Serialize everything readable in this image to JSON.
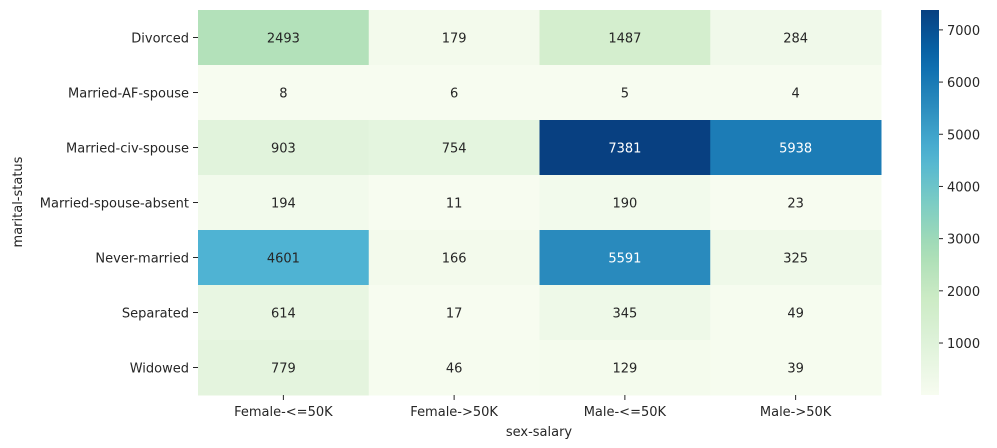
{
  "chart_data": {
    "type": "heatmap",
    "xlabel": "sex-salary",
    "ylabel": "marital-status",
    "x_categories": [
      "Female-<=50K",
      "Female->50K",
      "Male-<=50K",
      "Male->50K"
    ],
    "y_categories": [
      "Divorced",
      "Married-AF-spouse",
      "Married-civ-spouse",
      "Married-spouse-absent",
      "Never-married",
      "Separated",
      "Widowed"
    ],
    "values": [
      [
        2493,
        179,
        1487,
        284
      ],
      [
        8,
        6,
        5,
        4
      ],
      [
        903,
        754,
        7381,
        5938
      ],
      [
        194,
        11,
        190,
        23
      ],
      [
        4601,
        166,
        5591,
        325
      ],
      [
        614,
        17,
        345,
        49
      ],
      [
        779,
        46,
        129,
        39
      ]
    ],
    "colormap": "GnBu",
    "colorbar": {
      "min": 4,
      "max": 7381,
      "ticks": [
        1000,
        2000,
        3000,
        4000,
        5000,
        6000,
        7000
      ]
    },
    "annotations": true,
    "grid": false
  }
}
